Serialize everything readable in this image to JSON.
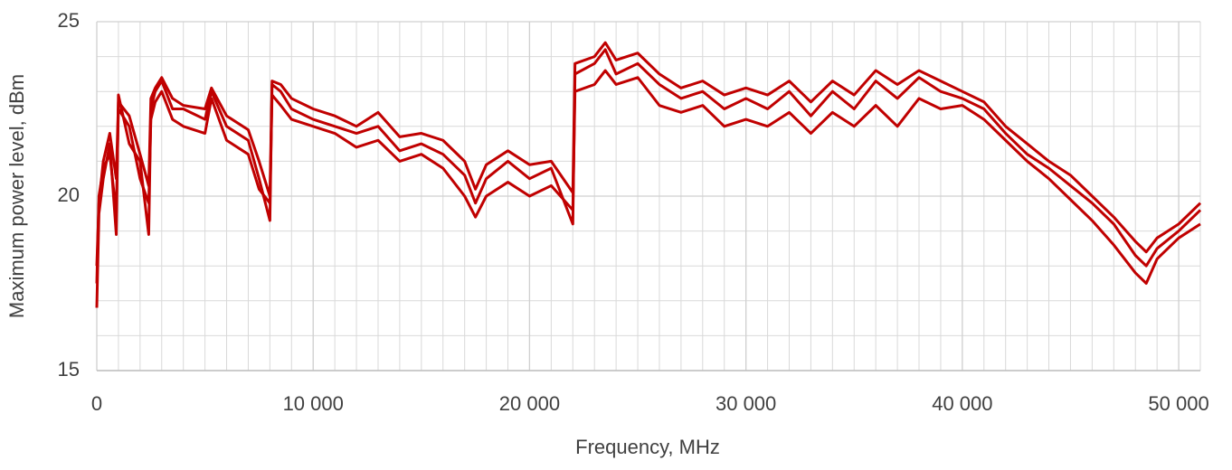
{
  "chart_data": {
    "type": "line",
    "x_label": "Frequency, MHz",
    "y_label": "Maximum power level, dBm",
    "x": [
      0,
      100,
      300,
      600,
      900,
      1000,
      1500,
      2000,
      2400,
      2500,
      2700,
      3000,
      3500,
      4000,
      5000,
      5300,
      6000,
      7000,
      7500,
      8000,
      8100,
      8500,
      9000,
      10000,
      11000,
      12000,
      13000,
      14000,
      15000,
      16000,
      17000,
      17500,
      18000,
      19000,
      20000,
      21000,
      22000,
      22100,
      23000,
      23500,
      24000,
      25000,
      26000,
      27000,
      28000,
      29000,
      30000,
      31000,
      32000,
      33000,
      34000,
      35000,
      36000,
      37000,
      38000,
      39000,
      40000,
      41000,
      42000,
      43000,
      44000,
      45000,
      46000,
      47000,
      48000,
      48500,
      49000,
      50000,
      51000
    ],
    "series": [
      {
        "color": "#c00000",
        "values": [
          16.8,
          19.5,
          20.5,
          21.5,
          18.9,
          22.9,
          21.5,
          21,
          18.9,
          22.5,
          23,
          23.3,
          22.5,
          22.5,
          22.2,
          23,
          22,
          21.6,
          20.5,
          19.3,
          23.2,
          23,
          22.5,
          22.2,
          22,
          21.8,
          22,
          21.3,
          21.5,
          21.2,
          20.6,
          19.8,
          20.5,
          21,
          20.5,
          20.8,
          19.2,
          23.5,
          23.8,
          24.2,
          23.5,
          23.8,
          23.2,
          22.8,
          23,
          22.5,
          22.8,
          22.5,
          23,
          22.3,
          23,
          22.5,
          23.3,
          22.8,
          23.4,
          23,
          22.8,
          22.5,
          21.8,
          21.2,
          20.8,
          20.3,
          19.8,
          19.2,
          18.3,
          18,
          18.5,
          19,
          19.6
        ]
      },
      {
        "color": "#c00000",
        "values": [
          17.5,
          20,
          20.8,
          21.2,
          19.5,
          22.5,
          22,
          20.5,
          19.8,
          22.2,
          22.7,
          23,
          22.2,
          22,
          21.8,
          22.8,
          21.6,
          21.2,
          20.2,
          19.8,
          22.9,
          22.6,
          22.2,
          22,
          21.8,
          21.4,
          21.6,
          21,
          21.2,
          20.8,
          20,
          19.4,
          20,
          20.4,
          20,
          20.3,
          19.6,
          23,
          23.2,
          23.6,
          23.2,
          23.4,
          22.6,
          22.4,
          22.6,
          22,
          22.2,
          22,
          22.4,
          21.8,
          22.4,
          22,
          22.6,
          22,
          22.8,
          22.5,
          22.6,
          22.2,
          21.6,
          21,
          20.5,
          19.9,
          19.3,
          18.6,
          17.8,
          17.5,
          18.2,
          18.8,
          19.2
        ]
      },
      {
        "color": "#c00000",
        "values": [
          18,
          19.8,
          21,
          21.8,
          20.5,
          22.7,
          22.3,
          21.2,
          20.3,
          22.8,
          23.1,
          23.4,
          22.8,
          22.6,
          22.5,
          23.1,
          22.3,
          21.9,
          21,
          20,
          23.3,
          23.2,
          22.8,
          22.5,
          22.3,
          22,
          22.4,
          21.7,
          21.8,
          21.6,
          21,
          20.2,
          20.9,
          21.3,
          20.9,
          21,
          20.1,
          23.8,
          24,
          24.4,
          23.9,
          24.1,
          23.5,
          23.1,
          23.3,
          22.9,
          23.1,
          22.9,
          23.3,
          22.7,
          23.3,
          22.9,
          23.6,
          23.2,
          23.6,
          23.3,
          23,
          22.7,
          22,
          21.5,
          21,
          20.6,
          20,
          19.4,
          18.7,
          18.4,
          18.8,
          19.2,
          19.8
        ]
      }
    ],
    "xlim": [
      0,
      51000
    ],
    "ylim": [
      15,
      25
    ],
    "xticks": [
      0,
      {
        "value": 10000,
        "label": "10 000"
      },
      {
        "value": 20000,
        "label": "20 000"
      },
      {
        "value": 30000,
        "label": "30 000"
      },
      {
        "value": 40000,
        "label": "40 000"
      },
      {
        "value": 50000,
        "label": "50 000"
      }
    ],
    "yticks": [
      15,
      20,
      25
    ],
    "grid": true,
    "minor_grid": {
      "x": 1000,
      "y": 1
    }
  }
}
